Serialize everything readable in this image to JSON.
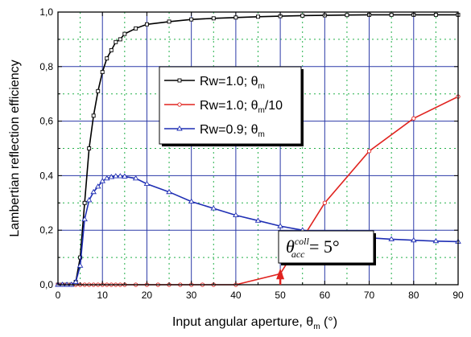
{
  "chart_data": {
    "type": "line",
    "xlabel": "Input angular aperture, θ",
    "xlabel_sub": "m",
    "xlabel_unit": " (°)",
    "ylabel": "Lambertian reflection efficiency",
    "xlim": [
      0,
      90
    ],
    "ylim": [
      0.0,
      1.0
    ],
    "x_ticks": [
      0,
      10,
      20,
      30,
      40,
      50,
      60,
      70,
      80,
      90
    ],
    "x_tick_labels": [
      "0",
      "10",
      "20",
      "30",
      "40",
      "50",
      "60",
      "70",
      "80",
      "90"
    ],
    "y_ticks": [
      0.0,
      0.2,
      0.4,
      0.6,
      0.8,
      1.0
    ],
    "y_tick_labels": [
      "0,0",
      "0,2",
      "0,4",
      "0,6",
      "0,8",
      "1,0"
    ],
    "grid": true,
    "legend_position": "upper-right",
    "series": [
      {
        "name": "Rw=1.0; θ",
        "name_sub": "m",
        "name_suffix": "",
        "color": "#000000",
        "marker": "square",
        "x": [
          0,
          1,
          2,
          3,
          4,
          5,
          6,
          7,
          8,
          9,
          10,
          11,
          12,
          13,
          14,
          15,
          17.5,
          20,
          25,
          30,
          35,
          40,
          45,
          50,
          55,
          60,
          65,
          70,
          75,
          80,
          85,
          90
        ],
        "y": [
          0.0,
          0.0,
          0.0,
          0.0,
          0.01,
          0.1,
          0.3,
          0.5,
          0.62,
          0.71,
          0.78,
          0.83,
          0.86,
          0.89,
          0.9,
          0.92,
          0.94,
          0.955,
          0.965,
          0.973,
          0.977,
          0.98,
          0.983,
          0.985,
          0.987,
          0.988,
          0.989,
          0.99,
          0.99,
          0.99,
          0.99,
          0.99
        ]
      },
      {
        "name": "Rw=1.0; θ",
        "name_sub": "m",
        "name_suffix": "/10",
        "color": "#e0231f",
        "marker": "circle",
        "x": [
          0,
          1,
          2,
          3,
          4,
          5,
          6,
          7,
          8,
          9,
          10,
          11,
          12,
          13,
          14,
          15,
          17.5,
          20,
          22.5,
          25,
          27.5,
          30,
          32.5,
          35,
          40,
          50,
          60,
          70,
          80,
          90
        ],
        "y": [
          0,
          0,
          0,
          0,
          0,
          0,
          0,
          0,
          0,
          0,
          0,
          0,
          0,
          0,
          0,
          0,
          0,
          0,
          0,
          0,
          0,
          0,
          0,
          0,
          0,
          0.04,
          0.3,
          0.49,
          0.61,
          0.69
        ]
      },
      {
        "name": "Rw=0.9; θ",
        "name_sub": "m",
        "name_suffix": "",
        "color": "#1f2fb4",
        "marker": "triangle",
        "x": [
          0,
          1,
          2,
          3,
          4,
          5,
          6,
          7,
          8,
          9,
          10,
          11,
          12,
          13,
          14,
          15,
          17.5,
          20,
          25,
          30,
          35,
          40,
          45,
          50,
          55,
          60,
          65,
          70,
          75,
          80,
          85,
          90
        ],
        "y": [
          0.0,
          0.0,
          0.0,
          0.0,
          0.01,
          0.07,
          0.24,
          0.31,
          0.34,
          0.36,
          0.38,
          0.39,
          0.395,
          0.398,
          0.398,
          0.397,
          0.39,
          0.37,
          0.34,
          0.305,
          0.28,
          0.255,
          0.235,
          0.215,
          0.2,
          0.19,
          0.18,
          0.172,
          0.167,
          0.163,
          0.16,
          0.158
        ]
      }
    ],
    "annotation": {
      "symbol": "θ",
      "superscript": "coll",
      "subscript": "acc",
      "equals": " = 5°",
      "arrow_x": 50,
      "arrow_color": "#e0231f"
    }
  }
}
